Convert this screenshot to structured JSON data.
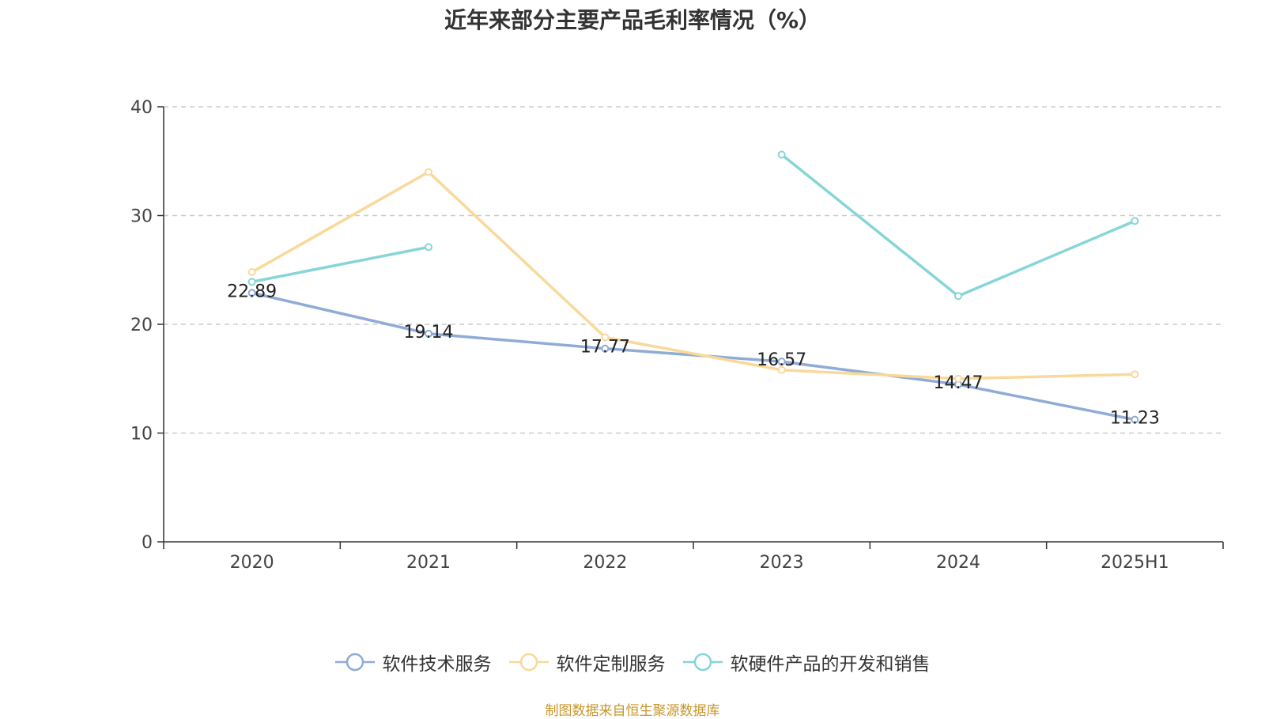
{
  "title": "近年来部分主要产品毛利率情况（%）",
  "source_note": "制图数据来自恒生聚源数据库",
  "colors": {
    "axis": "#333333",
    "grid": "#cccccc",
    "tick_text": "#444444",
    "label_text": "#222222"
  },
  "chart_data": {
    "type": "line",
    "categories": [
      "2020",
      "2021",
      "2022",
      "2023",
      "2024",
      "2025H1"
    ],
    "ylim": [
      0,
      40
    ],
    "yticks": [
      0,
      10,
      20,
      30,
      40
    ],
    "grid": true,
    "legend_position": "bottom",
    "series": [
      {
        "name": "软件技术服务",
        "color": "#8fabd6",
        "values": [
          22.89,
          19.14,
          17.77,
          16.57,
          14.47,
          11.23
        ],
        "data_labels": [
          "22.89",
          "19.14",
          "17.77",
          "16.57",
          "14.47",
          "11.23"
        ]
      },
      {
        "name": "软件定制服务",
        "color": "#f9d99a",
        "values": [
          24.8,
          34.0,
          18.8,
          15.8,
          15.0,
          15.4
        ]
      },
      {
        "name": "软硬件产品的开发和销售",
        "color": "#86d5d8",
        "values": [
          23.9,
          27.1,
          null,
          35.6,
          22.6,
          29.5
        ]
      }
    ]
  }
}
